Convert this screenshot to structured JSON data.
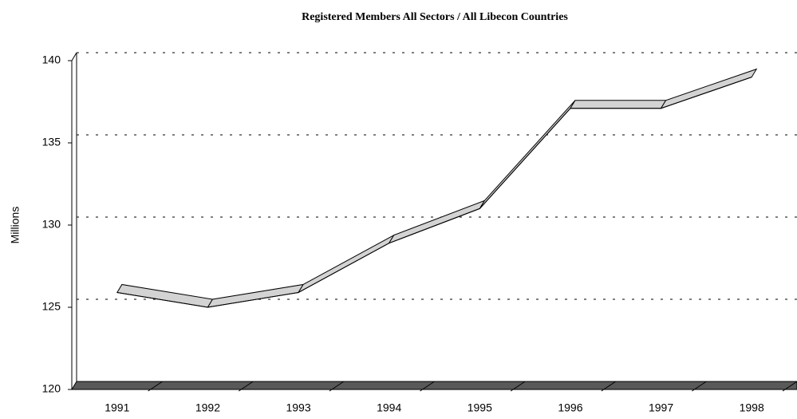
{
  "chart_data": {
    "type": "line3d",
    "title": "Registered Members All Sectors / All Libecon Countries",
    "y_label": "Millions",
    "categories": [
      "1991",
      "1992",
      "1993",
      "1994",
      "1995",
      "1996",
      "1997",
      "1998"
    ],
    "series": [
      {
        "name": "Registered Members",
        "color": "#d3d3d3",
        "values": [
          125.9,
          125.0,
          125.9,
          128.9,
          131.0,
          137.1,
          137.1,
          139.0
        ]
      }
    ],
    "ylim": [
      120,
      140
    ],
    "yticks": [
      120,
      125,
      130,
      135,
      140
    ],
    "grid": true
  }
}
